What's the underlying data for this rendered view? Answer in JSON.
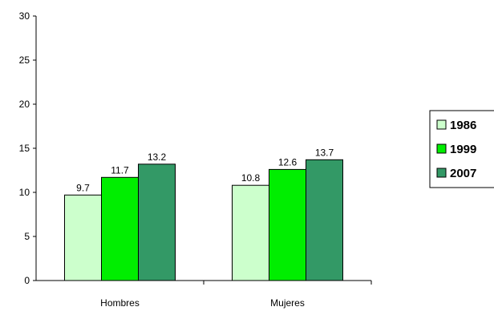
{
  "chart_data": {
    "type": "bar",
    "categories": [
      "Hombres",
      "Mujeres"
    ],
    "series": [
      {
        "name": "1986",
        "values": [
          9.7,
          10.8
        ],
        "color": "#ccffcc"
      },
      {
        "name": "1999",
        "values": [
          11.7,
          12.6
        ],
        "color": "#00ee00"
      },
      {
        "name": "2007",
        "values": [
          13.2,
          13.7
        ],
        "color": "#339966"
      }
    ],
    "data_labels": [
      [
        "9.7",
        "10.8"
      ],
      [
        "11.7",
        "12.6"
      ],
      [
        "13.2",
        "13.7"
      ]
    ],
    "y_ticks": [
      "0",
      "5",
      "10",
      "15",
      "20",
      "25",
      "30"
    ],
    "ylim": [
      0,
      30
    ],
    "title": "",
    "xlabel": "",
    "ylabel": "",
    "grid": false,
    "legend_position": "right"
  }
}
